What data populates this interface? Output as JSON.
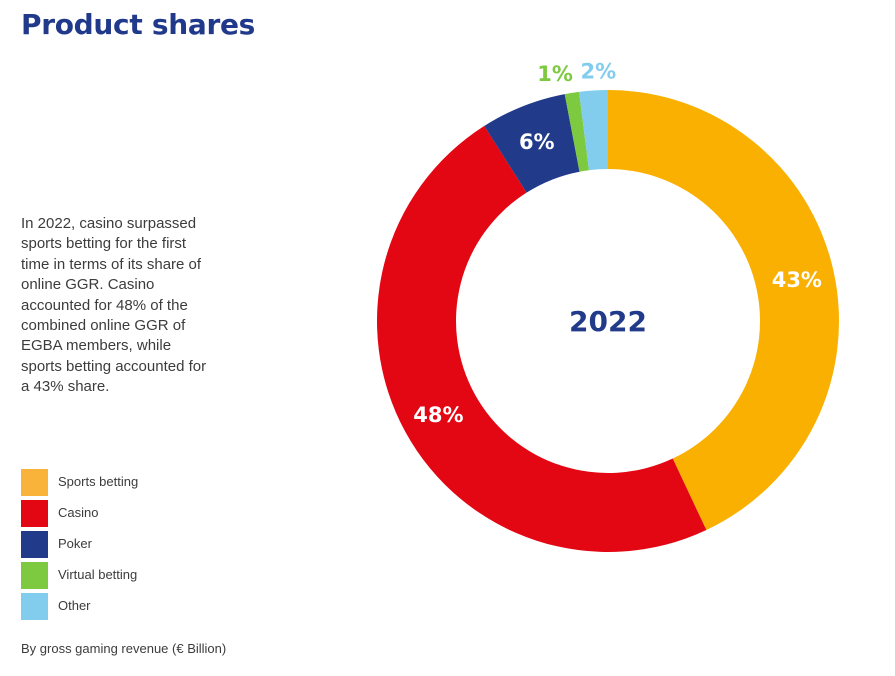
{
  "header": {
    "title": "Product shares"
  },
  "description": "In 2022, casino surpassed sports betting for the first time in terms of its share of online GGR. Casino accounted for 48% of the combined online GGR of EGBA members, while sports betting accounted for a 43% share.",
  "footnote": "By gross gaming revenue (€ Billion)",
  "chart_data": {
    "type": "pie",
    "variant": "donut",
    "title": "Product shares",
    "center_label": "2022",
    "start": "12 o'clock, clockwise",
    "categories": [
      "Sports betting",
      "Casino",
      "Poker",
      "Virtual betting",
      "Other"
    ],
    "values": [
      43,
      48,
      6,
      1,
      2
    ],
    "unit": "%",
    "labels": [
      "43%",
      "48%",
      "6%",
      "1%",
      "2%"
    ],
    "label_placement": [
      "inside",
      "inside",
      "inside",
      "outside",
      "outside"
    ],
    "colors": [
      "#f9b000",
      "#e30613",
      "#213a8a",
      "#7dc940",
      "#82cdee"
    ],
    "label_colors": [
      "#ffffff",
      "#ffffff",
      "#ffffff",
      "#7dc940",
      "#82cdee"
    ],
    "center_label_color": "#213a8a",
    "legend": {
      "placement": "left",
      "entries": [
        {
          "label": "Sports betting",
          "color": "#f9b33a"
        },
        {
          "label": "Casino",
          "color": "#e30613"
        },
        {
          "label": "Poker",
          "color": "#213a8a"
        },
        {
          "label": "Virtual betting",
          "color": "#7dc940"
        },
        {
          "label": "Other",
          "color": "#82cdee"
        }
      ]
    },
    "xlabel": "",
    "ylabel": "",
    "subtitle_note": "By gross gaming revenue (€ Billion)"
  }
}
